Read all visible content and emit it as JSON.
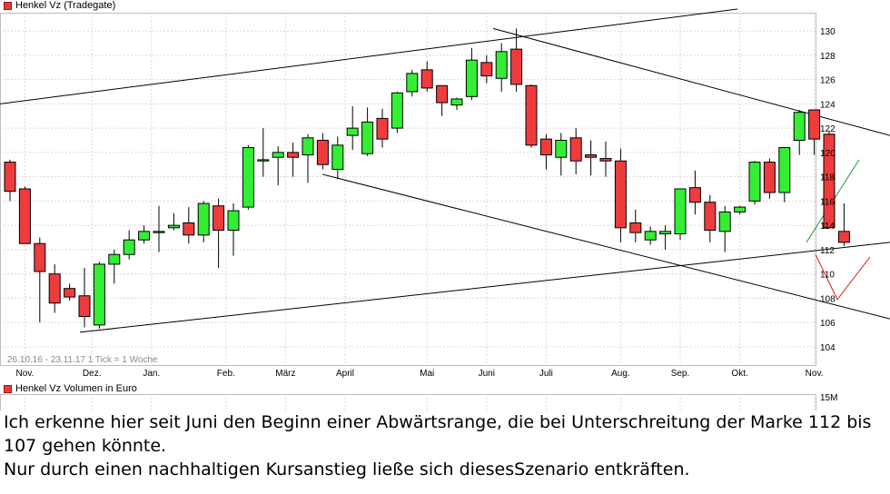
{
  "legend": {
    "price_label": "Henkel Vz (Tradegate)",
    "volume_label": "Henkel Vz Volumen in Euro"
  },
  "info_text": "26.10.16 - 23.11.17    1 Tick = 1 Woche",
  "volume_axis_label": "15M",
  "caption": {
    "line1": "Ich erkenne hier seit Juni den Beginn einer Abwärtsrange, die bei Unterschreitung der Marke 112 bis 107 gehen könnte.",
    "line2": "Nur durch einen nachhaltigen Kursanstieg ließe sich diesesSzenario entkräften."
  },
  "colors": {
    "up": "#33ee33",
    "down": "#ee3c3c",
    "grid": "#d8d8d8",
    "trend_green": "#1f9a3a",
    "trend_red": "#e02020"
  },
  "chart_data": {
    "type": "candlestick",
    "title": "Henkel Vz (Tradegate)",
    "period": "26.10.16 - 23.11.17",
    "tick": "1 Tick = 1 Woche",
    "ylim": [
      102.5,
      131.5
    ],
    "y_ticks": [
      104,
      106,
      108,
      110,
      112,
      114,
      116,
      118,
      120,
      122,
      124,
      126,
      128,
      130
    ],
    "x_ticks": [
      "Nov.",
      "Dez.",
      "Jan.",
      "Feb.",
      "März",
      "April",
      "Mai",
      "Juni",
      "Juli",
      "Aug.",
      "Sep.",
      "Okt.",
      "Nov."
    ],
    "x_tick_weeks": [
      1,
      5.5,
      9.5,
      14.5,
      18.5,
      22.5,
      28,
      32,
      36,
      41,
      45,
      49,
      54
    ],
    "candles": [
      {
        "o": 119.2,
        "h": 119.4,
        "l": 116.0,
        "c": 116.8
      },
      {
        "o": 117.0,
        "h": 117.2,
        "l": 112.5,
        "c": 112.5
      },
      {
        "o": 112.5,
        "h": 113.0,
        "l": 106.0,
        "c": 110.2
      },
      {
        "o": 110.0,
        "h": 110.8,
        "l": 106.8,
        "c": 107.6
      },
      {
        "o": 108.8,
        "h": 109.2,
        "l": 107.8,
        "c": 108.1
      },
      {
        "o": 108.2,
        "h": 110.5,
        "l": 105.6,
        "c": 106.5
      },
      {
        "o": 105.8,
        "h": 111.0,
        "l": 105.5,
        "c": 110.8
      },
      {
        "o": 110.8,
        "h": 112.0,
        "l": 109.2,
        "c": 111.6
      },
      {
        "o": 111.6,
        "h": 113.6,
        "l": 111.2,
        "c": 112.8
      },
      {
        "o": 112.8,
        "h": 114.0,
        "l": 112.5,
        "c": 113.5
      },
      {
        "o": 113.4,
        "h": 115.6,
        "l": 111.8,
        "c": 113.5
      },
      {
        "o": 113.8,
        "h": 115.0,
        "l": 113.6,
        "c": 114.0
      },
      {
        "o": 114.2,
        "h": 115.5,
        "l": 112.5,
        "c": 113.2
      },
      {
        "o": 113.2,
        "h": 116.0,
        "l": 112.6,
        "c": 115.8
      },
      {
        "o": 115.6,
        "h": 116.2,
        "l": 110.5,
        "c": 113.6
      },
      {
        "o": 113.6,
        "h": 115.8,
        "l": 111.5,
        "c": 115.2
      },
      {
        "o": 115.5,
        "h": 120.6,
        "l": 115.3,
        "c": 120.4
      },
      {
        "o": 119.3,
        "h": 122.0,
        "l": 118.0,
        "c": 119.4
      },
      {
        "o": 119.6,
        "h": 120.5,
        "l": 117.3,
        "c": 120.0
      },
      {
        "o": 120.0,
        "h": 120.8,
        "l": 118.0,
        "c": 119.6
      },
      {
        "o": 119.8,
        "h": 121.5,
        "l": 117.5,
        "c": 121.2
      },
      {
        "o": 121.0,
        "h": 121.6,
        "l": 118.6,
        "c": 119.0
      },
      {
        "o": 118.6,
        "h": 121.3,
        "l": 117.8,
        "c": 120.6
      },
      {
        "o": 121.4,
        "h": 123.8,
        "l": 120.2,
        "c": 122.0
      },
      {
        "o": 119.9,
        "h": 123.7,
        "l": 119.7,
        "c": 122.5
      },
      {
        "o": 122.8,
        "h": 123.6,
        "l": 120.4,
        "c": 121.1
      },
      {
        "o": 122.0,
        "h": 125.0,
        "l": 121.6,
        "c": 124.9
      },
      {
        "o": 125.0,
        "h": 126.8,
        "l": 124.6,
        "c": 126.5
      },
      {
        "o": 126.8,
        "h": 127.5,
        "l": 125.0,
        "c": 125.3
      },
      {
        "o": 125.5,
        "h": 125.5,
        "l": 123.0,
        "c": 124.1
      },
      {
        "o": 123.9,
        "h": 124.5,
        "l": 123.5,
        "c": 124.4
      },
      {
        "o": 124.6,
        "h": 128.6,
        "l": 124.3,
        "c": 127.6
      },
      {
        "o": 127.4,
        "h": 128.0,
        "l": 125.7,
        "c": 126.3
      },
      {
        "o": 126.1,
        "h": 129.0,
        "l": 125.0,
        "c": 128.3
      },
      {
        "o": 128.5,
        "h": 130.2,
        "l": 125.0,
        "c": 125.6
      },
      {
        "o": 125.5,
        "h": 125.6,
        "l": 120.4,
        "c": 120.6
      },
      {
        "o": 121.1,
        "h": 121.5,
        "l": 118.6,
        "c": 119.8
      },
      {
        "o": 119.6,
        "h": 121.6,
        "l": 118.1,
        "c": 121.0
      },
      {
        "o": 121.2,
        "h": 122.0,
        "l": 118.2,
        "c": 119.3
      },
      {
        "o": 119.8,
        "h": 121.0,
        "l": 118.1,
        "c": 119.6
      },
      {
        "o": 119.5,
        "h": 120.9,
        "l": 118.0,
        "c": 119.3
      },
      {
        "o": 119.3,
        "h": 120.3,
        "l": 112.6,
        "c": 113.8
      },
      {
        "o": 114.2,
        "h": 115.3,
        "l": 112.6,
        "c": 113.4
      },
      {
        "o": 112.8,
        "h": 113.9,
        "l": 112.4,
        "c": 113.5
      },
      {
        "o": 113.3,
        "h": 114.0,
        "l": 112.0,
        "c": 113.5
      },
      {
        "o": 113.3,
        "h": 117.0,
        "l": 112.8,
        "c": 117.0
      },
      {
        "o": 117.1,
        "h": 118.5,
        "l": 114.9,
        "c": 115.9
      },
      {
        "o": 115.9,
        "h": 116.5,
        "l": 112.6,
        "c": 113.6
      },
      {
        "o": 113.5,
        "h": 115.6,
        "l": 111.8,
        "c": 115.1
      },
      {
        "o": 115.1,
        "h": 115.6,
        "l": 114.9,
        "c": 115.5
      },
      {
        "o": 116.0,
        "h": 119.3,
        "l": 115.7,
        "c": 119.2
      },
      {
        "o": 119.2,
        "h": 119.5,
        "l": 116.2,
        "c": 116.7
      },
      {
        "o": 116.7,
        "h": 120.4,
        "l": 115.9,
        "c": 120.4
      },
      {
        "o": 121.0,
        "h": 123.5,
        "l": 119.8,
        "c": 123.3
      },
      {
        "o": 123.5,
        "h": 123.5,
        "l": 119.8,
        "c": 121.1
      },
      {
        "o": 121.5,
        "h": 121.8,
        "l": 113.8,
        "c": 113.8
      },
      {
        "o": 113.5,
        "h": 115.8,
        "l": 112.3,
        "c": 112.6
      }
    ]
  }
}
